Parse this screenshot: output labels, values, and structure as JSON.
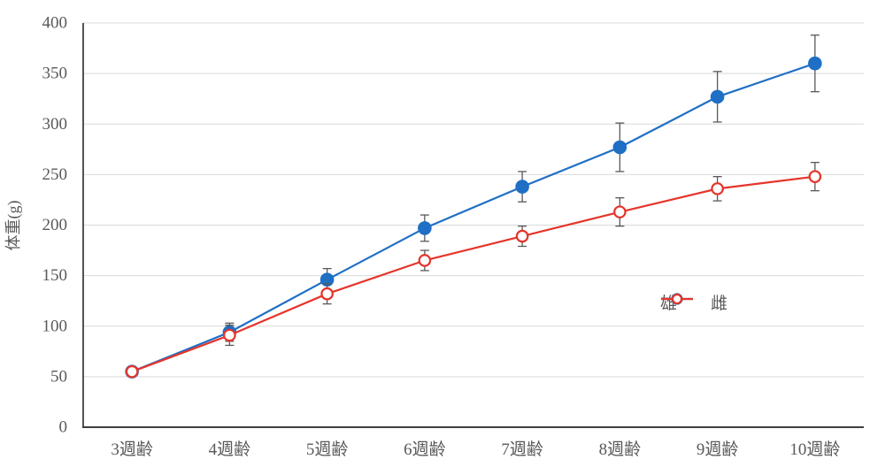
{
  "chart_data": {
    "type": "line",
    "title": "",
    "xlabel": "",
    "ylabel": "体重(g)",
    "ylim": [
      0,
      400
    ],
    "ytick_step": 50,
    "yticks": [
      "0",
      "50",
      "100",
      "150",
      "200",
      "250",
      "300",
      "350",
      "400"
    ],
    "categories": [
      "3週齢",
      "4週齢",
      "5週齢",
      "6週齢",
      "7週齢",
      "8週齢",
      "9週齢",
      "10週齢"
    ],
    "grid": "horizontal",
    "legend_position": "inside-right-middle",
    "series": [
      {
        "name": "雄",
        "color": "#1F6FC5",
        "marker": "filled-circle",
        "values": [
          55,
          94,
          146,
          197,
          238,
          277,
          327,
          360
        ],
        "errors": [
          3,
          9,
          11,
          13,
          15,
          24,
          25,
          28
        ]
      },
      {
        "name": "雌",
        "color": "#E5352B",
        "marker": "open-circle",
        "values": [
          55,
          91,
          132,
          165,
          189,
          213,
          236,
          248
        ],
        "errors": [
          3,
          10,
          10,
          10,
          10,
          14,
          12,
          14
        ]
      }
    ],
    "error_bar_color": "#595959",
    "axis_color": "#404040",
    "gridline_color": "#D9D9D9",
    "tick_label_color": "#595959"
  }
}
